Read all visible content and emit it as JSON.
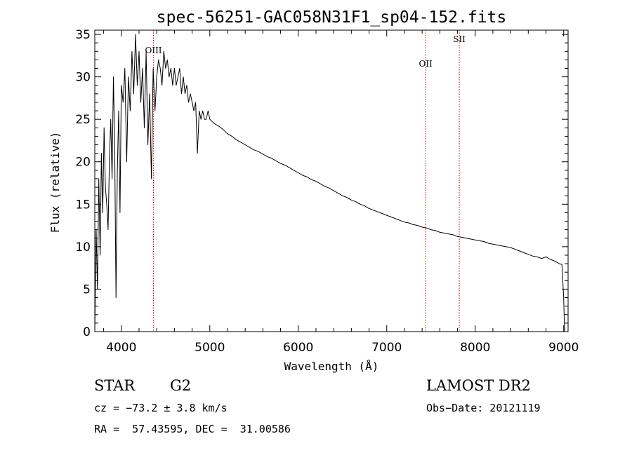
{
  "chart_data": {
    "type": "line",
    "title": "spec-56251-GAC058N31F1_sp04-152.fits",
    "xlabel": "Wavelength (Å)",
    "ylabel": "Flux (relative)",
    "xlim": [
      3700,
      9050
    ],
    "ylim": [
      0,
      35.5
    ],
    "xticks": [
      4000,
      5000,
      6000,
      7000,
      8000,
      9000
    ],
    "yticks": [
      0,
      5,
      10,
      15,
      20,
      25,
      30,
      35
    ],
    "grid": false,
    "series": [
      {
        "line_color": "#000000",
        "x": [
          3700,
          3715,
          3730,
          3745,
          3760,
          3775,
          3790,
          3805,
          3820,
          3835,
          3850,
          3865,
          3880,
          3895,
          3910,
          3925,
          3940,
          3955,
          3970,
          3985,
          4000,
          4020,
          4040,
          4060,
          4080,
          4100,
          4120,
          4140,
          4160,
          4180,
          4200,
          4220,
          4240,
          4260,
          4280,
          4300,
          4320,
          4340,
          4360,
          4380,
          4400,
          4420,
          4440,
          4460,
          4480,
          4500,
          4520,
          4540,
          4560,
          4580,
          4600,
          4620,
          4640,
          4660,
          4680,
          4700,
          4720,
          4740,
          4760,
          4780,
          4800,
          4820,
          4840,
          4860,
          4880,
          4900,
          4920,
          4940,
          4960,
          4980,
          5000,
          5050,
          5100,
          5150,
          5200,
          5250,
          5300,
          5350,
          5400,
          5450,
          5500,
          5550,
          5600,
          5650,
          5700,
          5750,
          5800,
          5850,
          5900,
          5950,
          6000,
          6050,
          6100,
          6150,
          6200,
          6250,
          6300,
          6350,
          6400,
          6450,
          6500,
          6550,
          6600,
          6650,
          6700,
          6750,
          6800,
          6850,
          6900,
          6950,
          7000,
          7050,
          7100,
          7150,
          7200,
          7250,
          7300,
          7350,
          7400,
          7450,
          7500,
          7550,
          7600,
          7650,
          7700,
          7750,
          7800,
          7850,
          7900,
          7950,
          8000,
          8050,
          8100,
          8150,
          8200,
          8250,
          8300,
          8350,
          8400,
          8450,
          8500,
          8550,
          8600,
          8650,
          8700,
          8750,
          8800,
          8850,
          8900,
          8950,
          8980,
          9000,
          9010
        ],
        "y": [
          0,
          12,
          5,
          18,
          9,
          21,
          14,
          24,
          17,
          15,
          12,
          20,
          25,
          18,
          30,
          22,
          4,
          19,
          26,
          14,
          29,
          27,
          31,
          20,
          30,
          26,
          33,
          28,
          35,
          29,
          33,
          27,
          31,
          24,
          33,
          22,
          28,
          18,
          31,
          26,
          30,
          32,
          31,
          29,
          33,
          31,
          32,
          30,
          31,
          29,
          31,
          29,
          30,
          31,
          28,
          30,
          28,
          29,
          27,
          28,
          27,
          26,
          27,
          21,
          26,
          25,
          26,
          25,
          25,
          26,
          25,
          24.5,
          24.2,
          23.8,
          23.3,
          23.0,
          22.6,
          22.3,
          22.0,
          21.7,
          21.4,
          21.2,
          20.9,
          20.6,
          20.4,
          20.1,
          19.8,
          19.6,
          19.3,
          19.0,
          18.7,
          18.4,
          18.2,
          17.9,
          17.7,
          17.4,
          17.1,
          16.9,
          16.6,
          16.3,
          16.0,
          15.8,
          15.5,
          15.3,
          15.0,
          14.8,
          14.5,
          14.3,
          14.1,
          13.9,
          13.7,
          13.5,
          13.3,
          13.1,
          12.9,
          12.8,
          12.6,
          12.5,
          12.3,
          12.2,
          12.0,
          11.9,
          11.7,
          11.6,
          11.5,
          11.4,
          11.2,
          11.1,
          11.0,
          10.9,
          10.8,
          10.7,
          10.6,
          10.4,
          10.3,
          10.2,
          10.1,
          10.0,
          9.9,
          9.7,
          9.5,
          9.3,
          9.1,
          8.9,
          8.8,
          8.6,
          8.8,
          8.5,
          8.3,
          8.0,
          7.9,
          4,
          0
        ]
      }
    ],
    "annotations": [
      {
        "label": "OIII",
        "x": 4363,
        "color": "#cc0000"
      },
      {
        "label": "OII",
        "x": 7440,
        "color": "#cc0000"
      },
      {
        "label": "SII",
        "x": 7820,
        "color": "#cc0000"
      }
    ]
  },
  "info": {
    "object_class": "STAR",
    "subclass": "G2",
    "survey": "LAMOST DR2",
    "cz": "cz = −73.2 ± 3.8 km/s",
    "obs_date": "Obs−Date: 20121119",
    "coords": "RA =  57.43595, DEC =  31.00586"
  }
}
